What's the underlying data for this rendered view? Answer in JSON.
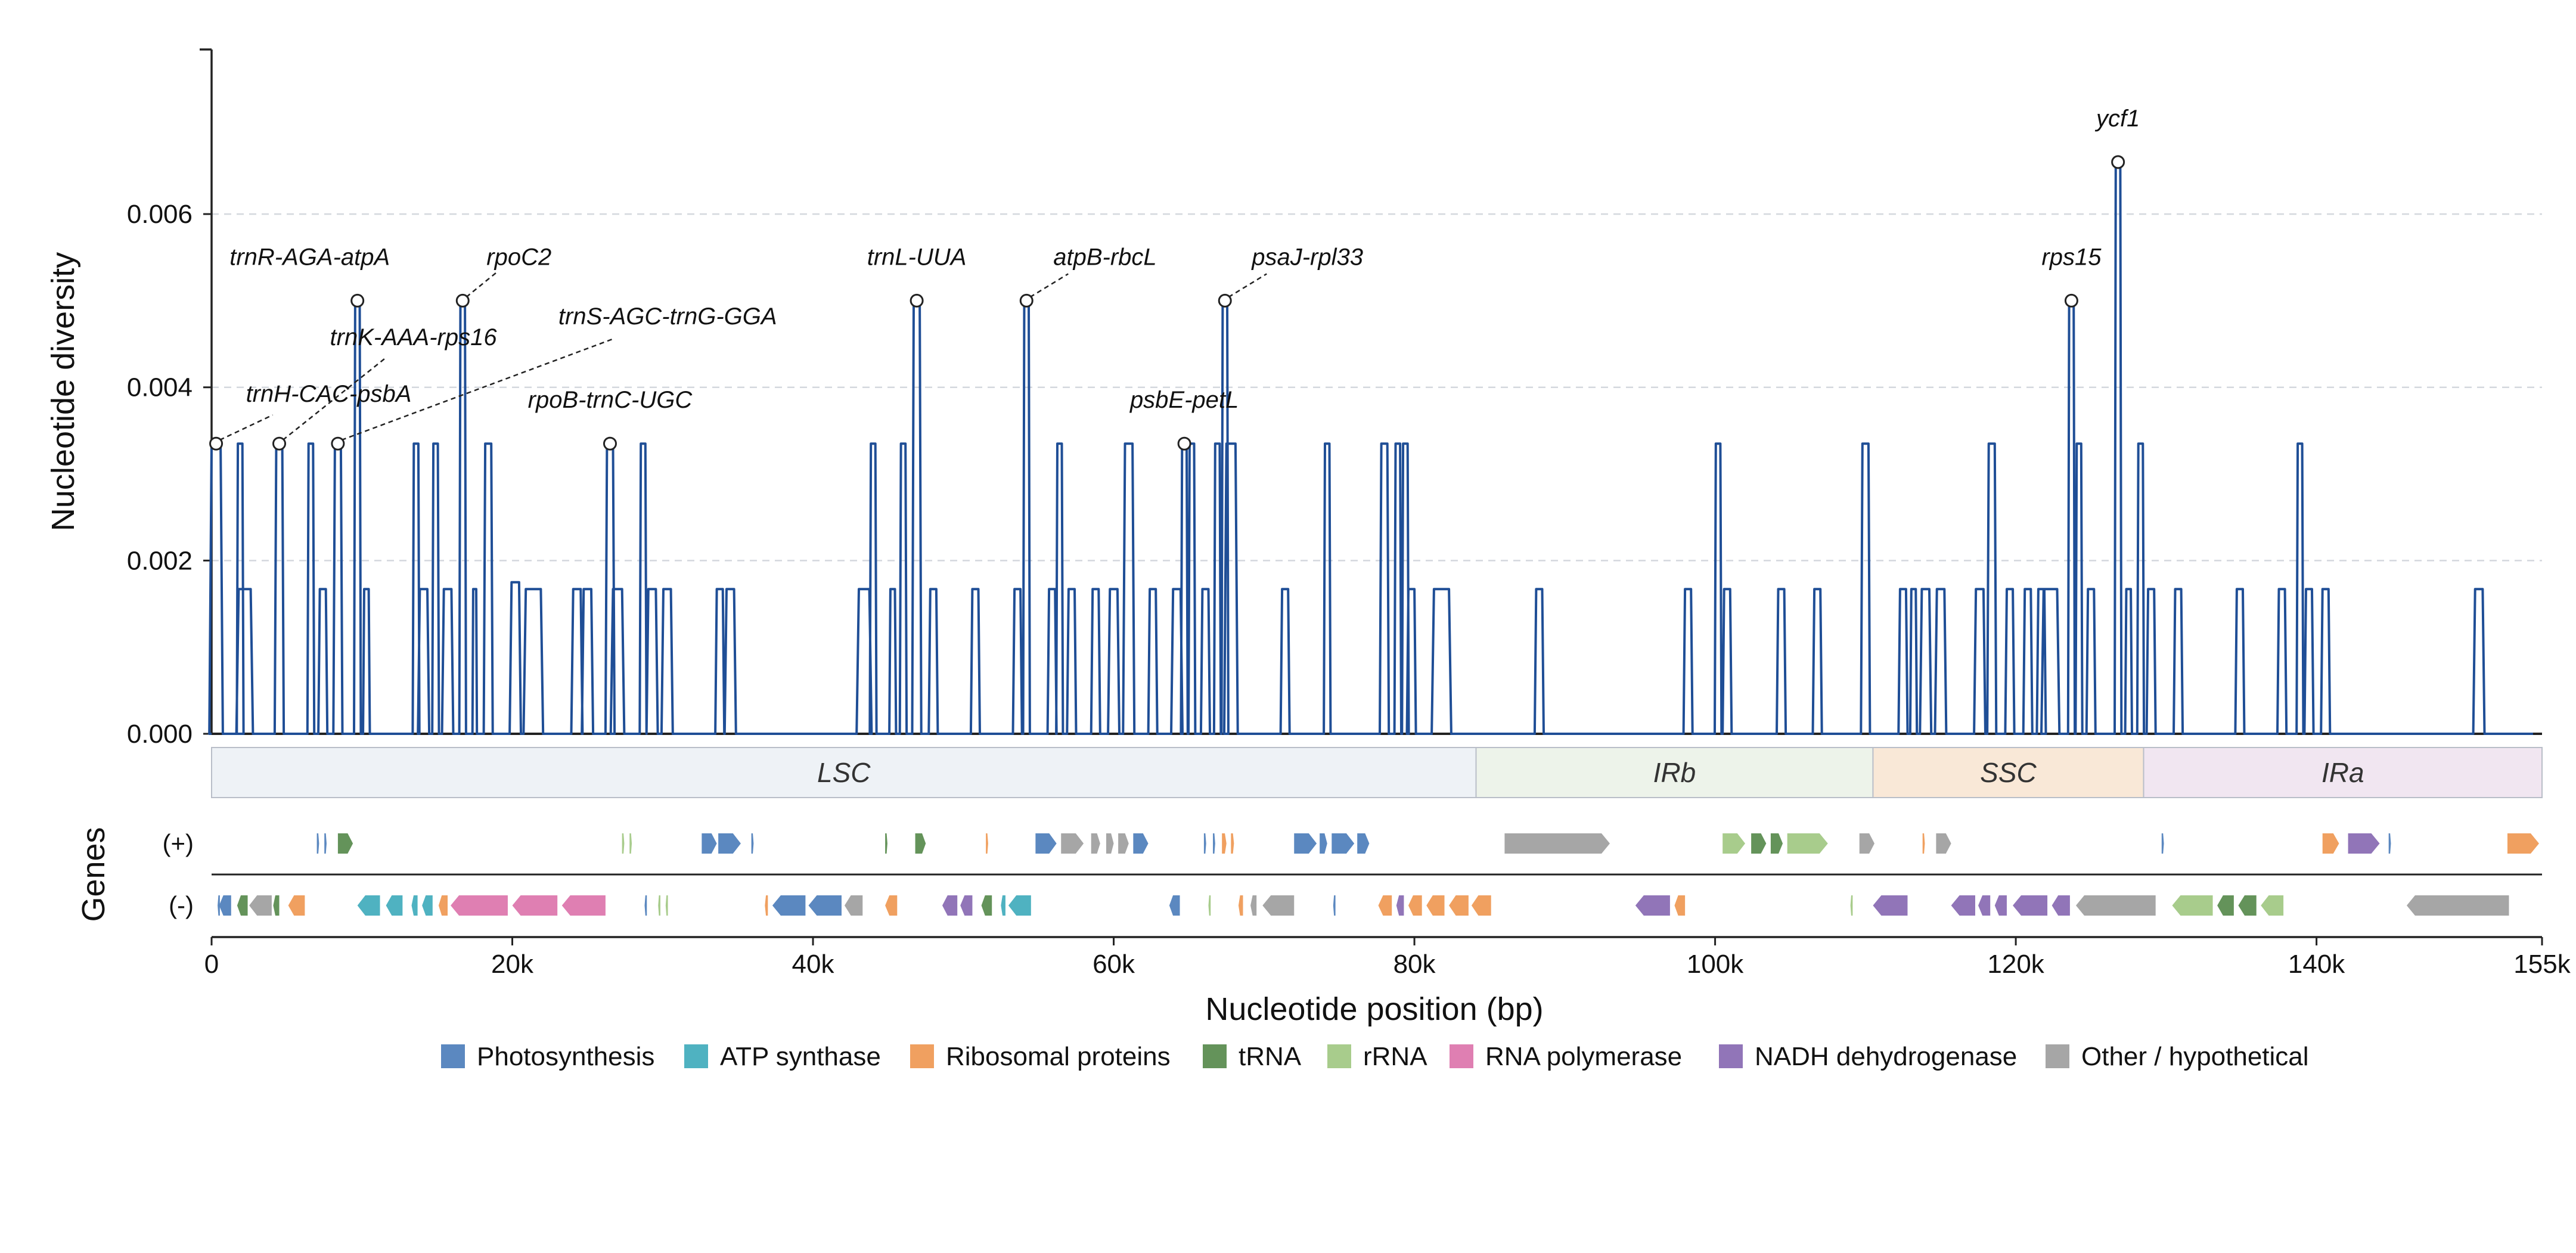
{
  "chart_data": {
    "type": "line",
    "xlabel": "Nucleotide position (bp)",
    "ylabel": "Nucleotide diversity",
    "xlim": [
      0,
      155000
    ],
    "ylim": [
      0,
      0.0079
    ],
    "x_ticks": [
      0,
      20000,
      40000,
      60000,
      80000,
      100000,
      120000,
      140000,
      155000
    ],
    "x_tick_labels": [
      "0",
      "20k",
      "40k",
      "60k",
      "80k",
      "100k",
      "120k",
      "140k",
      "155k"
    ],
    "y_ticks": [
      0,
      0.002,
      0.004,
      0.006
    ],
    "y_tick_labels": [
      "0.000",
      "0.002",
      "0.004",
      "0.006"
    ],
    "grid": "horizontal dashed",
    "line_color": "#1f4e96",
    "series": [
      {
        "peaks": [
          [
            300,
            0.00335,
            600
          ],
          [
            1900,
            0.00335,
            300
          ],
          [
            2200,
            0.00167,
            800
          ],
          [
            4500,
            0.00335,
            400
          ],
          [
            6600,
            0.00335,
            300
          ],
          [
            7400,
            0.00167,
            400
          ],
          [
            8400,
            0.00335,
            400
          ],
          [
            9700,
            0.005,
            300
          ],
          [
            10300,
            0.00167,
            300
          ],
          [
            13600,
            0.00335,
            300
          ],
          [
            14100,
            0.00167,
            500
          ],
          [
            14900,
            0.00335,
            300
          ],
          [
            15700,
            0.00167,
            500
          ],
          [
            16700,
            0.005,
            300
          ],
          [
            17500,
            0.00167,
            200
          ],
          [
            18400,
            0.00335,
            400
          ],
          [
            20200,
            0.00175,
            500
          ],
          [
            21400,
            0.00167,
            1000
          ],
          [
            24300,
            0.00167,
            500
          ],
          [
            25000,
            0.00167,
            500
          ],
          [
            26500,
            0.00335,
            400
          ],
          [
            27000,
            0.00167,
            600
          ],
          [
            28700,
            0.00335,
            300
          ],
          [
            29300,
            0.00167,
            500
          ],
          [
            30300,
            0.00167,
            500
          ],
          [
            33800,
            0.00167,
            400
          ],
          [
            34500,
            0.00167,
            500
          ],
          [
            43400,
            0.00167,
            700
          ],
          [
            44000,
            0.00335,
            300
          ],
          [
            45300,
            0.00167,
            300
          ],
          [
            46000,
            0.00335,
            300
          ],
          [
            46900,
            0.005,
            400
          ],
          [
            48000,
            0.00167,
            400
          ],
          [
            50800,
            0.00167,
            400
          ],
          [
            53600,
            0.00167,
            400
          ],
          [
            54200,
            0.005,
            300
          ],
          [
            55900,
            0.00167,
            400
          ],
          [
            56400,
            0.00335,
            300
          ],
          [
            57200,
            0.00167,
            400
          ],
          [
            58800,
            0.00167,
            400
          ],
          [
            60000,
            0.00167,
            500
          ],
          [
            61000,
            0.00335,
            500
          ],
          [
            62600,
            0.00167,
            400
          ],
          [
            64200,
            0.00167,
            500
          ],
          [
            64700,
            0.00335,
            300
          ],
          [
            65200,
            0.00335,
            300
          ],
          [
            66100,
            0.00167,
            400
          ],
          [
            66900,
            0.00335,
            300
          ],
          [
            67400,
            0.005,
            300
          ],
          [
            67800,
            0.00335,
            600
          ],
          [
            71400,
            0.00167,
            400
          ],
          [
            74200,
            0.00335,
            300
          ],
          [
            78000,
            0.00335,
            400
          ],
          [
            78900,
            0.00335,
            300
          ],
          [
            79400,
            0.00335,
            300
          ],
          [
            79800,
            0.00167,
            400
          ],
          [
            81800,
            0.00167,
            1000
          ],
          [
            88300,
            0.00167,
            400
          ],
          [
            98200,
            0.00167,
            400
          ],
          [
            100200,
            0.00335,
            300
          ],
          [
            100800,
            0.00167,
            400
          ],
          [
            104400,
            0.00167,
            400
          ],
          [
            106800,
            0.00167,
            400
          ],
          [
            110000,
            0.00335,
            400
          ],
          [
            112500,
            0.00167,
            400
          ],
          [
            113200,
            0.00167,
            300
          ],
          [
            114000,
            0.00167,
            500
          ],
          [
            115000,
            0.00167,
            500
          ],
          [
            117600,
            0.00167,
            500
          ],
          [
            118400,
            0.00335,
            400
          ],
          [
            119600,
            0.00167,
            400
          ],
          [
            120800,
            0.00167,
            400
          ],
          [
            121700,
            0.00167,
            400
          ],
          [
            122300,
            0.00167,
            900
          ],
          [
            123700,
            0.005,
            300
          ],
          [
            124200,
            0.00335,
            300
          ],
          [
            125000,
            0.00167,
            400
          ],
          [
            126800,
            0.0066,
            300
          ],
          [
            127500,
            0.00167,
            300
          ],
          [
            128300,
            0.00335,
            300
          ],
          [
            129000,
            0.00167,
            400
          ],
          [
            130800,
            0.00167,
            400
          ],
          [
            134900,
            0.00167,
            400
          ],
          [
            137700,
            0.00167,
            400
          ],
          [
            138900,
            0.00335,
            300
          ],
          [
            139500,
            0.00167,
            400
          ],
          [
            140600,
            0.00167,
            400
          ],
          [
            150800,
            0.00167,
            500
          ]
        ]
      }
    ],
    "annotations": [
      {
        "label": "trnH-CAC-psbA",
        "x": 300,
        "y": 0.00335,
        "leader": true
      },
      {
        "label": "trnK-AAA-rps16",
        "x": 4500,
        "y": 0.00335,
        "leader": true
      },
      {
        "label": "trnS-AGC-trnG-GGA",
        "x": 8400,
        "y": 0.00335,
        "leader": true
      },
      {
        "label": "trnR-AGA-atpA",
        "x": 9700,
        "y": 0.005,
        "leader": false
      },
      {
        "label": "rpoC2",
        "x": 16700,
        "y": 0.005,
        "leader": true
      },
      {
        "label": "rpoB-trnC-UGC",
        "x": 26500,
        "y": 0.00335,
        "leader": false
      },
      {
        "label": "trnL-UUA",
        "x": 46900,
        "y": 0.005,
        "leader": false
      },
      {
        "label": "atpB-rbcL",
        "x": 54200,
        "y": 0.005,
        "leader": true
      },
      {
        "label": "psbE-petL",
        "x": 64700,
        "y": 0.00335,
        "leader": false
      },
      {
        "label": "psaJ-rpl33",
        "x": 67400,
        "y": 0.005,
        "leader": true
      },
      {
        "label": "rps15",
        "x": 123700,
        "y": 0.005,
        "leader": false
      },
      {
        "label": "ycf1",
        "x": 126800,
        "y": 0.0066,
        "leader": false
      }
    ],
    "regions": [
      {
        "label": "LSC",
        "start": 0,
        "end": 84100,
        "color": "#eef2f6"
      },
      {
        "label": "IRb",
        "start": 84100,
        "end": 110500,
        "color": "#edf3ea"
      },
      {
        "label": "SSC",
        "start": 110500,
        "end": 128500,
        "color": "#f9e8d7"
      },
      {
        "label": "IRa",
        "start": 128500,
        "end": 155000,
        "color": "#f1e6f1"
      }
    ],
    "genes_track": {
      "title": "Genes",
      "strand_labels": [
        "(+)",
        "(-)"
      ],
      "categories": [
        {
          "name": "Photosynthesis",
          "color": "#5b88c0"
        },
        {
          "name": "ATP synthase",
          "color": "#4fb2c1"
        },
        {
          "name": "Ribosomal proteins",
          "color": "#f0a060"
        },
        {
          "name": "tRNA",
          "color": "#64935a"
        },
        {
          "name": "rRNA",
          "color": "#a8cc8c"
        },
        {
          "name": "RNA polymerase",
          "color": "#df7fb2"
        },
        {
          "name": "NADH dehydrogenase",
          "color": "#9175b8"
        },
        {
          "name": "Other / hypothetical",
          "color": "#a6a6a6"
        }
      ],
      "plus": [
        [
          7000,
          7150,
          0
        ],
        [
          7500,
          7650,
          0
        ],
        [
          8400,
          9400,
          3
        ],
        [
          27300,
          27450,
          4
        ],
        [
          27800,
          27950,
          4
        ],
        [
          32600,
          33600,
          0
        ],
        [
          33700,
          35200,
          0
        ],
        [
          35900,
          36050,
          0
        ],
        [
          44800,
          44950,
          3
        ],
        [
          46800,
          47500,
          3
        ],
        [
          51500,
          51650,
          2
        ],
        [
          54800,
          56200,
          0
        ],
        [
          56500,
          58000,
          7
        ],
        [
          58500,
          59100,
          7
        ],
        [
          59500,
          60000,
          7
        ],
        [
          60300,
          61000,
          7
        ],
        [
          61300,
          62300,
          0
        ],
        [
          66000,
          66150,
          0
        ],
        [
          66600,
          66750,
          0
        ],
        [
          67200,
          67500,
          2
        ],
        [
          67800,
          68000,
          2
        ],
        [
          72000,
          73500,
          0
        ],
        [
          73700,
          74200,
          0
        ],
        [
          74500,
          76000,
          0
        ],
        [
          76200,
          77000,
          0
        ],
        [
          86000,
          93000,
          7
        ],
        [
          100500,
          102000,
          4
        ],
        [
          102400,
          103400,
          3
        ],
        [
          103700,
          104500,
          3
        ],
        [
          104800,
          107500,
          4
        ],
        [
          109600,
          110600,
          7
        ],
        [
          113800,
          113950,
          2
        ],
        [
          114700,
          115700,
          7
        ],
        [
          129700,
          129850,
          0
        ],
        [
          140400,
          141500,
          2
        ],
        [
          142100,
          144200,
          6
        ],
        [
          144800,
          144950,
          0
        ],
        [
          152700,
          154800,
          2
        ]
      ],
      "minus": [
        [
          400,
          550,
          0
        ],
        [
          500,
          1300,
          0
        ],
        [
          1700,
          2400,
          3
        ],
        [
          2500,
          4000,
          7
        ],
        [
          4100,
          4500,
          3
        ],
        [
          5100,
          6200,
          2
        ],
        [
          9700,
          11200,
          1
        ],
        [
          11600,
          12700,
          1
        ],
        [
          13300,
          13700,
          1
        ],
        [
          14000,
          14700,
          1
        ],
        [
          15100,
          15700,
          2
        ],
        [
          15900,
          19700,
          5
        ],
        [
          20000,
          23000,
          5
        ],
        [
          23300,
          26200,
          5
        ],
        [
          28800,
          28950,
          0
        ],
        [
          29700,
          29850,
          4
        ],
        [
          30200,
          30350,
          4
        ],
        [
          36800,
          37000,
          2
        ],
        [
          37300,
          39500,
          0
        ],
        [
          39700,
          41900,
          0
        ],
        [
          42100,
          43300,
          7
        ],
        [
          44800,
          45600,
          2
        ],
        [
          48600,
          49600,
          6
        ],
        [
          49800,
          50600,
          6
        ],
        [
          51200,
          51900,
          3
        ],
        [
          52500,
          52800,
          1
        ],
        [
          53000,
          54500,
          1
        ],
        [
          63700,
          64400,
          0
        ],
        [
          66300,
          66450,
          4
        ],
        [
          68300,
          68600,
          2
        ],
        [
          69100,
          69500,
          7
        ],
        [
          69900,
          72000,
          7
        ],
        [
          74600,
          74750,
          0
        ],
        [
          77600,
          78500,
          2
        ],
        [
          78800,
          79300,
          6
        ],
        [
          79600,
          80500,
          2
        ],
        [
          80800,
          82000,
          2
        ],
        [
          82300,
          83600,
          2
        ],
        [
          83800,
          85100,
          2
        ],
        [
          94700,
          97000,
          6
        ],
        [
          97300,
          98000,
          2
        ],
        [
          109000,
          109150,
          4
        ],
        [
          110500,
          112800,
          6
        ],
        [
          115700,
          117300,
          6
        ],
        [
          117500,
          118300,
          6
        ],
        [
          118600,
          119400,
          6
        ],
        [
          119800,
          122100,
          6
        ],
        [
          122400,
          123600,
          6
        ],
        [
          124000,
          129300,
          7
        ],
        [
          130400,
          133100,
          4
        ],
        [
          133400,
          134500,
          3
        ],
        [
          134800,
          136000,
          3
        ],
        [
          136300,
          137800,
          4
        ],
        [
          146000,
          152800,
          7
        ]
      ]
    }
  }
}
